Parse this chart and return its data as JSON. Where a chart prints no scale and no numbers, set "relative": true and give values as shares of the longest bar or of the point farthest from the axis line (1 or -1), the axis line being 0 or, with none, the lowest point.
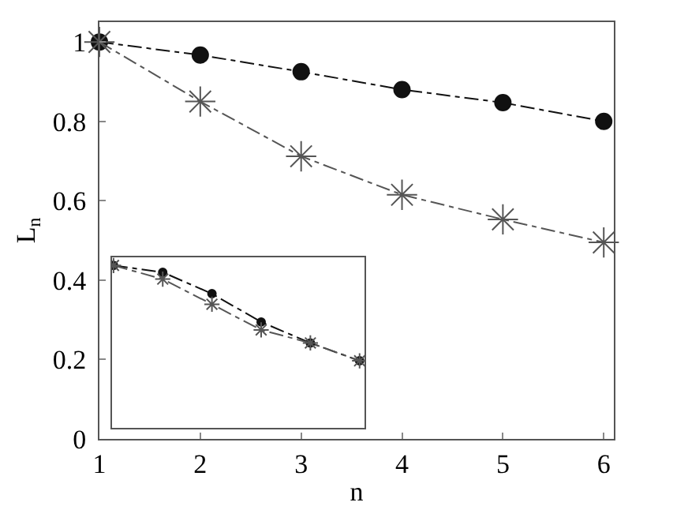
{
  "chart_data": [
    {
      "type": "line",
      "xlabel": "n",
      "ylabel": "L$_{n}$",
      "x": [
        1,
        2,
        3,
        4,
        5,
        6
      ],
      "xlim": [
        1,
        6.1
      ],
      "ylim": [
        0,
        1.05
      ],
      "xticks": [
        1,
        2,
        3,
        4,
        5,
        6
      ],
      "yticks": [
        0,
        0.2,
        0.4,
        0.6,
        0.8,
        1
      ],
      "grid": false,
      "line_style": "dashed",
      "series": [
        {
          "color": "#111111",
          "marker": "circle",
          "values": [
            1,
            0.967,
            0.925,
            0.88,
            0.847,
            0.8
          ]
        },
        {
          "color": "#555555",
          "marker": "cross",
          "values": [
            1,
            0.85,
            0.712,
            0.615,
            0.553,
            0.495
          ]
        }
      ]
    },
    {
      "type": "line",
      "relative": true,
      "categories": [
        null,
        null,
        null,
        null,
        null,
        null
      ],
      "grid": false,
      "line_style": "dashed",
      "series": [
        {
          "color": "#111111",
          "marker": "circle",
          "values": [
            1,
            0.958,
            0.826,
            0.652,
            0.523,
            0.413
          ]
        },
        {
          "color": "#555555",
          "marker": "cross",
          "values": [
            1,
            0.916,
            0.761,
            0.603,
            0.523,
            0.413
          ]
        }
      ]
    }
  ]
}
